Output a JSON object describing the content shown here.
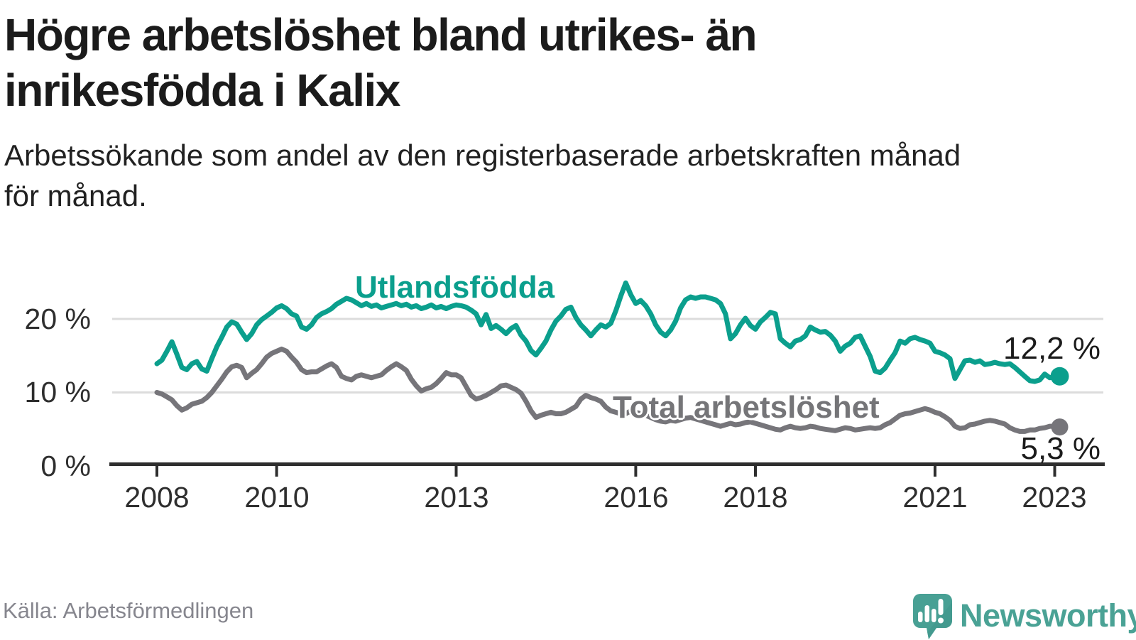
{
  "header": {
    "title_line1": "Högre arbetslöshet bland utrikes- än",
    "title_line2": "inrikesfödda i Kalix",
    "subtitle_line1": "Arbetssökande som andel av den registerbaserade arbetskraften månad",
    "subtitle_line2": "för månad."
  },
  "footer": {
    "source": "Källa: Arbetsförmedlingen",
    "brand": "Newsworthy"
  },
  "colors": {
    "accent_teal": "#0b9f8d",
    "series_gray": "#76757a",
    "grid": "#dcdcdc",
    "axis": "#2e2e2e",
    "title": "#1b1b1b",
    "tick_label": "#2e2e2e",
    "value_label": "#1b1b1b",
    "total_label_gray": "#757578",
    "source_text": "#86868e",
    "logo_teal": "#4aa295"
  },
  "chart_data": {
    "type": "line",
    "x_unit": "month",
    "x_range": [
      "2008-01",
      "2023-02"
    ],
    "x_tick_labels": [
      "2008",
      "2010",
      "2013",
      "2016",
      "2018",
      "2021",
      "2023"
    ],
    "x_tick_years": [
      2008,
      2010,
      2013,
      2016,
      2018,
      2021,
      2023
    ],
    "y_tick_labels": [
      "20 %",
      "10 %",
      "0 %"
    ],
    "y_tick_values": [
      20,
      10,
      0
    ],
    "ylim": [
      0,
      26
    ],
    "grid": "horizontal",
    "legend_position": "inline-labels",
    "series": [
      {
        "id": "utlandsfodda",
        "name": "Utlandsfödda",
        "color": "#0b9f8d",
        "end_label": "12,2 %",
        "end_value": 12.2,
        "values": [
          13.9,
          14.4,
          15.6,
          16.9,
          15.2,
          13.4,
          13.1,
          13.9,
          14.2,
          13.2,
          12.9,
          14.6,
          16.2,
          17.5,
          18.9,
          19.6,
          19.3,
          18.2,
          17.2,
          18.0,
          19.2,
          19.9,
          20.4,
          20.9,
          21.5,
          21.8,
          21.4,
          20.7,
          20.4,
          18.9,
          18.6,
          19.2,
          20.2,
          20.7,
          21.0,
          21.4,
          22.0,
          22.4,
          22.8,
          22.6,
          22.2,
          21.8,
          22.1,
          21.7,
          21.9,
          21.5,
          21.7,
          21.9,
          22.1,
          21.8,
          22.0,
          21.6,
          21.8,
          21.4,
          21.6,
          21.9,
          21.5,
          21.7,
          21.4,
          21.7,
          21.9,
          21.8,
          21.6,
          21.2,
          20.7,
          19.2,
          20.6,
          18.7,
          19.1,
          18.6,
          18.0,
          18.7,
          19.1,
          17.8,
          17.0,
          15.7,
          15.1,
          16.0,
          17.0,
          18.5,
          19.7,
          20.4,
          21.3,
          21.6,
          20.2,
          19.2,
          18.5,
          17.7,
          18.5,
          19.2,
          18.9,
          19.4,
          21.1,
          23.1,
          24.9,
          23.3,
          22.1,
          22.5,
          21.8,
          20.7,
          19.2,
          18.2,
          17.7,
          18.5,
          19.7,
          21.5,
          22.6,
          23.0,
          22.8,
          23.0,
          23.0,
          22.8,
          22.6,
          22.1,
          20.7,
          17.3,
          18.0,
          19.2,
          20.1,
          19.1,
          18.6,
          19.6,
          20.2,
          20.9,
          20.7,
          17.3,
          16.7,
          16.2,
          17.0,
          17.2,
          17.7,
          18.9,
          18.5,
          18.2,
          18.3,
          17.8,
          17.0,
          15.6,
          16.3,
          16.7,
          17.5,
          17.7,
          16.3,
          14.9,
          12.9,
          12.7,
          13.3,
          14.4,
          15.4,
          17.0,
          16.7,
          17.3,
          17.5,
          17.2,
          17.0,
          16.7,
          15.6,
          15.4,
          15.1,
          14.6,
          11.9,
          13.1,
          14.3,
          14.4,
          14.1,
          14.3,
          13.8,
          13.9,
          14.1,
          13.9,
          13.8,
          13.9,
          13.4,
          12.8,
          12.2,
          11.6,
          11.5,
          11.7,
          12.5,
          12.0,
          12.1,
          12.2
        ]
      },
      {
        "id": "total",
        "name": "Total arbetslöshet",
        "color": "#76757a",
        "end_label": "5,3 %",
        "end_value": 5.3,
        "values": [
          10.0,
          9.8,
          9.4,
          9.0,
          8.2,
          7.6,
          7.9,
          8.4,
          8.6,
          8.8,
          9.3,
          10.0,
          10.9,
          11.8,
          12.8,
          13.5,
          13.7,
          13.4,
          12.0,
          12.6,
          13.1,
          13.9,
          14.8,
          15.3,
          15.6,
          15.9,
          15.6,
          14.8,
          14.1,
          13.1,
          12.7,
          12.8,
          12.8,
          13.2,
          13.6,
          13.9,
          13.4,
          12.2,
          11.9,
          11.7,
          12.2,
          12.4,
          12.2,
          12.0,
          12.2,
          12.4,
          13.0,
          13.5,
          13.9,
          13.5,
          13.0,
          11.8,
          10.9,
          10.2,
          10.5,
          10.7,
          11.2,
          11.9,
          12.7,
          12.4,
          12.4,
          12.0,
          10.8,
          9.6,
          9.1,
          9.3,
          9.6,
          10.0,
          10.4,
          10.9,
          11.0,
          10.7,
          10.4,
          9.9,
          8.8,
          7.5,
          6.6,
          6.9,
          7.1,
          7.3,
          7.1,
          7.1,
          7.3,
          7.7,
          8.1,
          9.1,
          9.6,
          9.3,
          9.1,
          8.8,
          8.0,
          7.5,
          7.3,
          7.1,
          7.1,
          7.5,
          7.3,
          7.1,
          6.9,
          6.6,
          6.3,
          6.1,
          6.0,
          6.2,
          6.1,
          6.3,
          6.5,
          6.6,
          6.4,
          6.2,
          6.0,
          5.8,
          5.6,
          5.4,
          5.6,
          5.8,
          5.6,
          5.7,
          5.9,
          6.0,
          5.8,
          5.6,
          5.4,
          5.2,
          5.0,
          4.9,
          5.2,
          5.4,
          5.2,
          5.1,
          5.2,
          5.4,
          5.3,
          5.1,
          5.0,
          4.9,
          4.8,
          5.0,
          5.2,
          5.1,
          4.9,
          5.0,
          5.1,
          5.2,
          5.1,
          5.2,
          5.6,
          5.9,
          6.4,
          6.9,
          7.1,
          7.2,
          7.4,
          7.6,
          7.8,
          7.6,
          7.3,
          7.1,
          6.7,
          6.2,
          5.4,
          5.1,
          5.2,
          5.6,
          5.7,
          5.9,
          6.1,
          6.2,
          6.1,
          5.9,
          5.7,
          5.2,
          4.9,
          4.7,
          4.7,
          4.9,
          4.9,
          5.1,
          5.2,
          5.4,
          5.4,
          5.3
        ]
      }
    ]
  }
}
